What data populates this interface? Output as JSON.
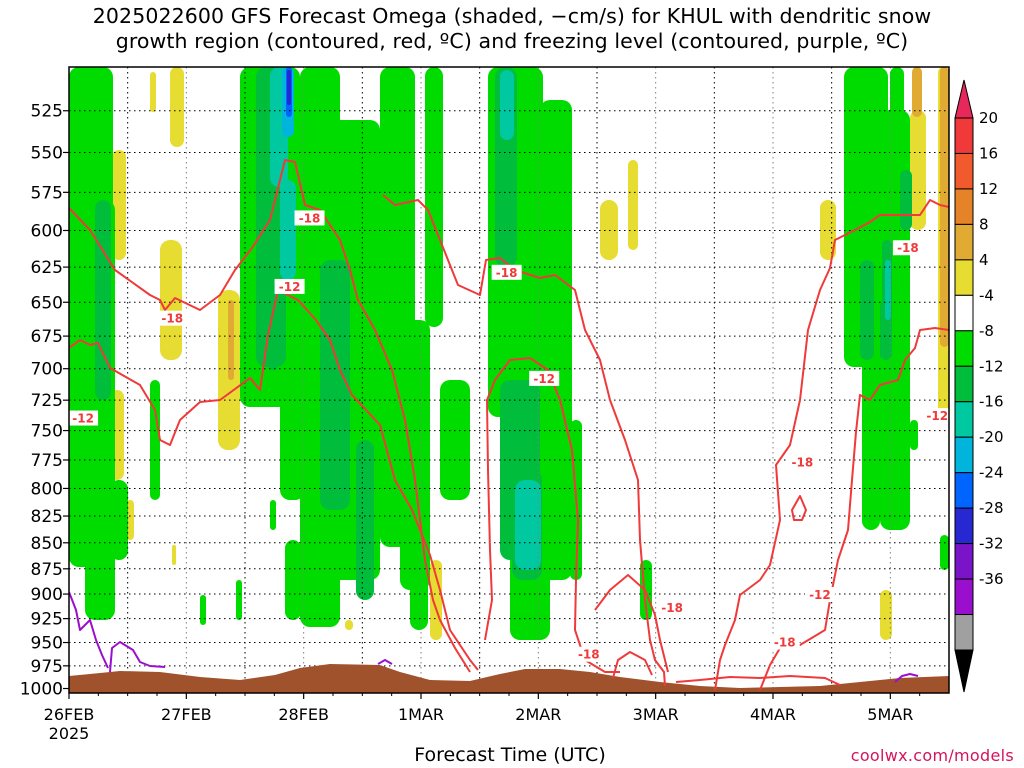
{
  "title_lines": [
    "2025022600 GFS Forecast Omega (shaded, −cm/s) for KHUL with dendritic snow",
    "growth region (contoured, red, ºC) and freezing level (contoured, purple, ºC)"
  ],
  "credit": "coolwx.com/models",
  "colors": {
    "green_light": "#00dc00",
    "green_dark": "#00be3c",
    "teal": "#00c8a0",
    "cyan": "#00b4dc",
    "blue": "#0064ff",
    "deep_blue": "#2828d2",
    "yellow": "#e6dc32",
    "gold": "#e1aa32",
    "orange": "#e68228",
    "red": "#f03a3a",
    "purple": "#9a0fcd",
    "terrain": "#a0522d"
  },
  "chart_data": {
    "type": "heatmap",
    "title": "2025022600 GFS Forecast Omega (shaded, −cm/s) for KHUL with dendritic snow growth region (contoured, red, ºC) and freezing level (contoured, purple, ºC)",
    "xlabel": "Forecast Time (UTC)",
    "ylabel": "",
    "x_ticks": [
      "26FEB\n2025",
      "27FEB",
      "28FEB",
      "1MAR",
      "2MAR",
      "3MAR",
      "4MAR",
      "5MAR"
    ],
    "x_range_days": [
      0,
      7.5
    ],
    "y_ticks": [
      525,
      550,
      575,
      600,
      625,
      650,
      675,
      700,
      725,
      750,
      775,
      800,
      825,
      850,
      875,
      900,
      925,
      950,
      975,
      1000
    ],
    "y_range_hpa": [
      500,
      1005
    ],
    "y_scale": "log-pressure",
    "grid": true,
    "colorbar": {
      "levels": [
        20,
        16,
        12,
        8,
        4,
        -4,
        -8,
        -12,
        -16,
        -20,
        -24,
        -28,
        -32,
        -36
      ],
      "colors": [
        "#e6285a",
        "#f03a3a",
        "#f05a2d",
        "#e68228",
        "#e1aa32",
        "#e6dc32",
        "#ffffff",
        "#00dc00",
        "#00be3c",
        "#00c8a0",
        "#00b4dc",
        "#0064ff",
        "#2828d2",
        "#7a14c8",
        "#9a0fcd",
        "#a0a0a0",
        "#000000"
      ]
    },
    "contour_labels": [
      {
        "text": "-18",
        "day": 2.05,
        "p": 592
      },
      {
        "text": "-12",
        "day": 1.88,
        "p": 639
      },
      {
        "text": "-18",
        "day": 0.88,
        "p": 662
      },
      {
        "text": "-12",
        "day": 0.12,
        "p": 740
      },
      {
        "text": "-18",
        "day": 3.73,
        "p": 629
      },
      {
        "text": "-12",
        "day": 4.05,
        "p": 708
      },
      {
        "text": "-18",
        "day": 5.14,
        "p": 914
      },
      {
        "text": "-18",
        "day": 4.43,
        "p": 963
      },
      {
        "text": "-18",
        "day": 6.25,
        "p": 777
      },
      {
        "text": "-12",
        "day": 6.4,
        "p": 901
      },
      {
        "text": "-18",
        "day": 6.1,
        "p": 950
      },
      {
        "text": "-18",
        "day": 7.15,
        "p": 612
      },
      {
        "text": "-12",
        "day": 7.4,
        "p": 738
      }
    ]
  }
}
